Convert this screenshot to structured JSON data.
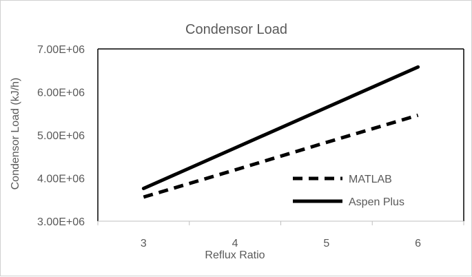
{
  "chart_data": {
    "type": "line",
    "title": "Condensor Load",
    "xlabel": "Reflux Ratio",
    "ylabel": "Condensor Load (kJ/h)",
    "x": [
      3,
      4,
      5,
      6
    ],
    "xlim": [
      2.5,
      6.5
    ],
    "ylim": [
      3000000,
      7000000
    ],
    "x_ticks": [
      "3",
      "4",
      "5",
      "6"
    ],
    "y_ticks": [
      "3.00E+06",
      "4.00E+06",
      "5.00E+06",
      "6.00E+06",
      "7.00E+06"
    ],
    "grid": false,
    "legend_position": "bottom-right",
    "series": [
      {
        "name": "MATLAB",
        "style": "dashed",
        "color": "#000000",
        "values": [
          3560000,
          4190000,
          4830000,
          5460000
        ]
      },
      {
        "name": "Aspen Plus",
        "style": "solid",
        "color": "#000000",
        "values": [
          3760000,
          4700000,
          5640000,
          6580000
        ]
      }
    ]
  }
}
